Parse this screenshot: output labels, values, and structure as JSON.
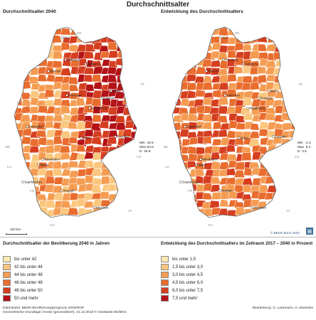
{
  "title": "Durchschnittsalter",
  "panels": {
    "left": {
      "title": "Durchschnittsalter 2040",
      "stats": "Min  40.5\nMax 53.0\nD  45.9"
    },
    "right": {
      "title": "Entwicklung des Durchschnittsalters",
      "stats": "Min  -2.1\nMax  8.2\nD  3.5"
    }
  },
  "countries": [
    "DK",
    "NL",
    "BE",
    "LU",
    "FR",
    "CH",
    "AT",
    "CZ",
    "PL"
  ],
  "cities": [
    "Kiel",
    "Hamburg",
    "Schwerin",
    "Bremen",
    "Hannover",
    "Berlin",
    "Potsdam",
    "Magdeburg",
    "Düsseldorf",
    "Erfurt",
    "Dresden",
    "Wiesbaden",
    "Mainz",
    "Saarbrücken",
    "Stuttgart",
    "München"
  ],
  "scale_label": "100 km",
  "copyright": "© BBSR Bonn 2020",
  "legend_left": {
    "title": "Durchschnittsalter der Bevölkerung 2040 in Jahren",
    "items": [
      {
        "label": "bis unter 42",
        "color": "#fde9b0"
      },
      {
        "label": "42 bis unter 44",
        "color": "#fbc77e"
      },
      {
        "label": "44 bis unter 46",
        "color": "#f59c52"
      },
      {
        "label": "46 bis unter 48",
        "color": "#e96d2e"
      },
      {
        "label": "48 bis unter 50",
        "color": "#d53e1f"
      },
      {
        "label": "50 und mehr",
        "color": "#b31217"
      }
    ]
  },
  "legend_right": {
    "title": "Entwicklung des Durchschnittsalters im Zeitraum 2017 – 2040 in Prozent",
    "items": [
      {
        "label": "bis unter 1,5",
        "color": "#fde9b0"
      },
      {
        "label": "1,5 bis unter 3,0",
        "color": "#fbc77e"
      },
      {
        "label": "3,0 bis unter 4,5",
        "color": "#f59c52"
      },
      {
        "label": "4,5 bis unter 6,0",
        "color": "#e96d2e"
      },
      {
        "label": "6,0 bis unter 7,5",
        "color": "#d53e1f"
      },
      {
        "label": "7,5 und mehr",
        "color": "#b31217"
      }
    ]
  },
  "footer_left": [
    "Datenbasis: BBSR-Bevölkerungsprognose 2040/ROP",
    "Geometrische Grundlage: Kreise (generalisiert), 31.12.2018 © GeoBasis-DE/BKG"
  ],
  "footer_right": "Bearbeitung: G. Lackmann, S. Maretzke"
}
